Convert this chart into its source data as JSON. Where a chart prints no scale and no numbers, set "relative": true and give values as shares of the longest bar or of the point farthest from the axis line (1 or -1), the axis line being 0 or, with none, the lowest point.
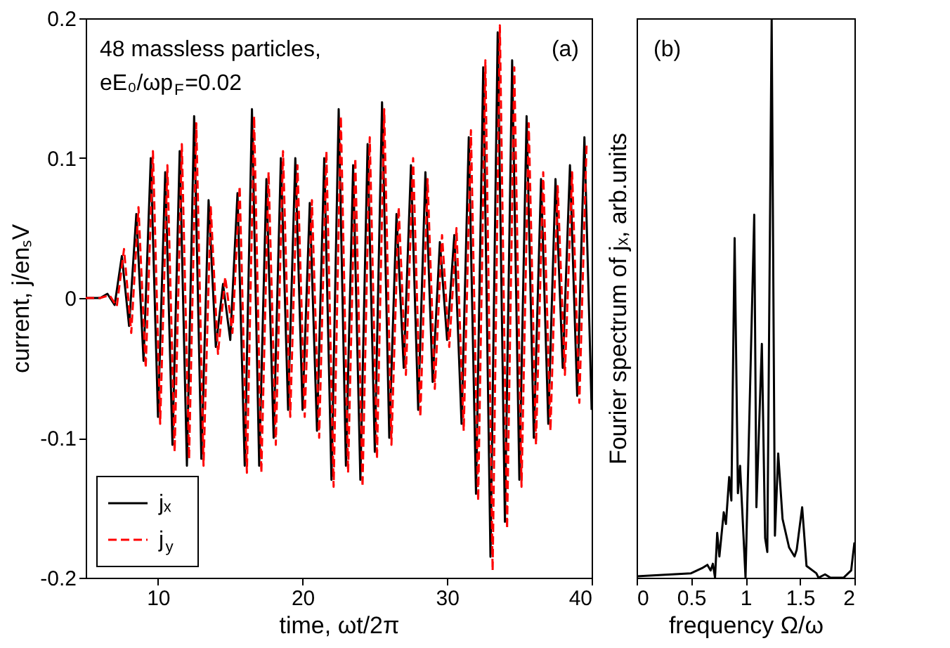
{
  "chart_data": [
    {
      "type": "line",
      "xlabel": "time, ωt/2π",
      "ylabel": "current, j/enₛV",
      "annotations": [
        "48 massless particles,",
        "eE₀/ωp$_{F}$=0.02",
        "(a)"
      ],
      "xlim": [
        5,
        40
      ],
      "xticks": [
        10,
        20,
        30,
        40
      ],
      "ylim": [
        -0.2,
        0.2
      ],
      "yticks": [
        -0.2,
        -0.1,
        0,
        0.1,
        0.2
      ],
      "legend": "bottom left",
      "series": [
        {
          "name": "jₓ",
          "color": "#000000",
          "line_style": "solid",
          "x": [
            5,
            6,
            6.5,
            7,
            7.5,
            8,
            8.5,
            9,
            9.5,
            10,
            10.5,
            11,
            11.5,
            12,
            12.5,
            13,
            13.5,
            14,
            14.5,
            15,
            15.5,
            16,
            16.5,
            17,
            17.5,
            18,
            18.5,
            19,
            19.5,
            20,
            20.5,
            21,
            21.5,
            22,
            22.5,
            23,
            23.5,
            24,
            24.5,
            25,
            25.5,
            26,
            26.5,
            27,
            27.5,
            28,
            28.5,
            29,
            29.5,
            30,
            30.5,
            31,
            31.5,
            32,
            32.5,
            33,
            33.5,
            34,
            34.5,
            35,
            35.5,
            36,
            36.5,
            37,
            37.5,
            38,
            38.5,
            39,
            39.5,
            40
          ],
          "values": [
            0,
            0,
            0.003,
            -0.005,
            0.03,
            -0.02,
            0.06,
            -0.045,
            0.1,
            -0.085,
            0.09,
            -0.105,
            0.105,
            -0.12,
            0.13,
            -0.115,
            0.07,
            -0.035,
            0.01,
            -0.03,
            0.075,
            -0.12,
            0.135,
            -0.12,
            0.085,
            -0.1,
            0.1,
            -0.08,
            0.1,
            -0.08,
            0.068,
            -0.095,
            0.1,
            -0.13,
            0.135,
            -0.12,
            0.095,
            -0.13,
            0.11,
            -0.11,
            0.14,
            -0.1,
            0.06,
            -0.05,
            0.095,
            -0.08,
            0.09,
            -0.06,
            0.04,
            -0.03,
            0.045,
            -0.09,
            0.115,
            -0.14,
            0.165,
            -0.185,
            0.19,
            -0.16,
            0.17,
            -0.13,
            0.13,
            -0.1,
            0.085,
            -0.09,
            0.085,
            -0.05,
            0.095,
            -0.07,
            0.115,
            -0.08
          ]
        },
        {
          "name": "j$_{y}$",
          "color": "#ff0000",
          "line_style": "dashed",
          "x": [
            5,
            6,
            6.65,
            7.15,
            7.65,
            8.15,
            8.65,
            9.15,
            9.65,
            10.15,
            10.65,
            11.15,
            11.65,
            12.15,
            12.65,
            13.15,
            13.65,
            14.15,
            14.65,
            15.15,
            15.65,
            16.15,
            16.65,
            17.15,
            17.65,
            18.15,
            18.65,
            19.15,
            19.65,
            20.15,
            20.65,
            21.15,
            21.65,
            22.15,
            22.65,
            23.15,
            23.65,
            24.15,
            24.65,
            25.15,
            25.65,
            26.15,
            26.65,
            27.15,
            27.65,
            28.15,
            28.65,
            29.15,
            29.65,
            30.15,
            30.65,
            31.15,
            31.65,
            32.15,
            32.65,
            33.15,
            33.65,
            34.15,
            34.65,
            35.15,
            35.65,
            36.15,
            36.65,
            37.15,
            37.65,
            38.15,
            38.65,
            39.15,
            39.65
          ],
          "values": [
            0,
            0,
            0.002,
            -0.006,
            0.035,
            -0.025,
            0.065,
            -0.05,
            0.105,
            -0.09,
            0.095,
            -0.11,
            0.11,
            -0.115,
            0.125,
            -0.12,
            0.065,
            -0.04,
            0.015,
            -0.025,
            0.08,
            -0.125,
            0.13,
            -0.125,
            0.09,
            -0.105,
            0.105,
            -0.085,
            0.095,
            -0.085,
            0.07,
            -0.1,
            0.105,
            -0.135,
            0.13,
            -0.125,
            0.1,
            -0.135,
            0.115,
            -0.115,
            0.135,
            -0.105,
            0.065,
            -0.055,
            0.1,
            -0.085,
            0.085,
            -0.065,
            0.045,
            -0.035,
            0.05,
            -0.095,
            0.12,
            -0.145,
            0.17,
            -0.195,
            0.195,
            -0.165,
            0.165,
            -0.135,
            0.125,
            -0.105,
            0.09,
            -0.095,
            0.08,
            -0.055,
            0.09,
            -0.075,
            0.11
          ]
        }
      ]
    },
    {
      "type": "line",
      "relative": true,
      "xlabel": "frequency Ω/ω",
      "ylabel": "Fourier spectrum of jₓ, arb.units",
      "annotations": [
        "(b)"
      ],
      "xlim": [
        0,
        2
      ],
      "xticks": [
        0,
        0.5,
        1,
        1.5,
        2
      ],
      "color": "#000000",
      "x": [
        0,
        0.5,
        0.6,
        0.65,
        0.68,
        0.7,
        0.72,
        0.74,
        0.76,
        0.8,
        0.82,
        0.85,
        0.87,
        0.9,
        0.93,
        0.95,
        1.0,
        1.08,
        1.1,
        1.15,
        1.18,
        1.2,
        1.24,
        1.27,
        1.3,
        1.34,
        1.4,
        1.45,
        1.47,
        1.52,
        1.56,
        1.65,
        1.67,
        1.73,
        1.78,
        1.9,
        1.97,
        2.0
      ],
      "values": [
        0.0025,
        0.008,
        0.017,
        0.023,
        0.013,
        0.025,
        0,
        0.08,
        0.038,
        0.117,
        0.096,
        0.18,
        0.138,
        0.607,
        0.151,
        0.2,
        0,
        0.649,
        0.126,
        0.418,
        0.071,
        0.046,
        1,
        0.075,
        0.222,
        0.105,
        0.054,
        0.038,
        0.05,
        0.126,
        0.021,
        0.008,
        0,
        0.006,
        0,
        0,
        0.013,
        0.063
      ]
    }
  ]
}
